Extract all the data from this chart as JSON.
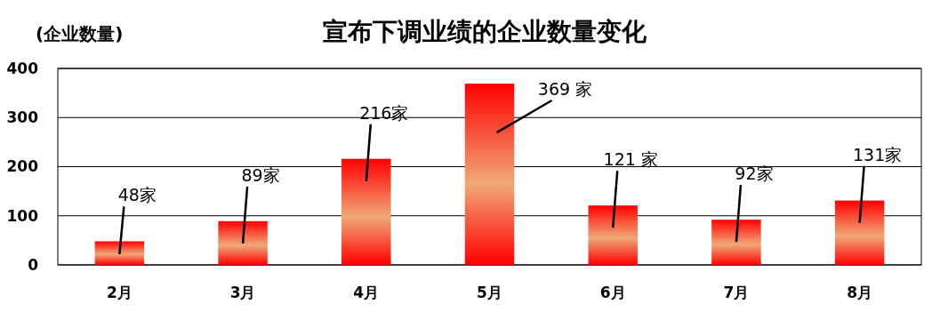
{
  "chart_data": {
    "type": "bar",
    "title": "宣布下调业绩的企业数量变化",
    "ylabel": "(企业数量)",
    "categories": [
      "2月",
      "3月",
      "4月",
      "5月",
      "6月",
      "7月",
      "8月"
    ],
    "values": [
      48,
      89,
      216,
      369,
      121,
      92,
      131
    ],
    "value_labels": [
      "48家",
      "89家",
      "216家",
      "369 家",
      "121 家",
      "92家",
      "131家"
    ],
    "color": "#ff0000",
    "ylim": [
      0,
      400
    ],
    "yticks": [
      0,
      100,
      200,
      300,
      400
    ],
    "grid": "y"
  }
}
